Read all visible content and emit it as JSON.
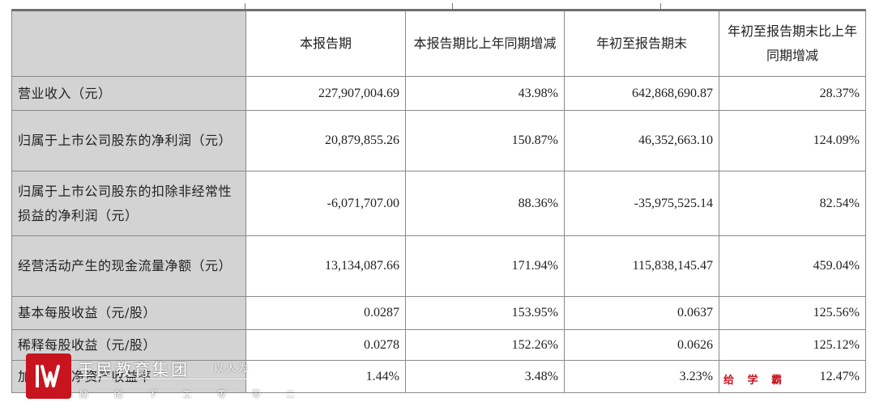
{
  "table": {
    "headers": [
      "",
      "本报告期",
      "本报告期比上年同期增减",
      "年初至报告期末",
      "年初至报告期末比上年同期增减"
    ],
    "rows": [
      {
        "label": "营业收入（元）",
        "current": "227,907,004.69",
        "current_change": "43.98%",
        "ytd": "642,868,690.87",
        "ytd_change": "28.37%"
      },
      {
        "label": "归属于上市公司股东的净利润（元）",
        "current": "20,879,855.26",
        "current_change": "150.87%",
        "ytd": "46,352,663.10",
        "ytd_change": "124.09%"
      },
      {
        "label": "归属于上市公司股东的扣除非经常性损益的净利润（元）",
        "current": "-6,071,707.00",
        "current_change": "88.36%",
        "ytd": "-35,975,525.14",
        "ytd_change": "82.54%"
      },
      {
        "label": "经营活动产生的现金流量净额（元）",
        "current": "13,134,087.66",
        "current_change": "171.94%",
        "ytd": "115,838,145.47",
        "ytd_change": "459.04%"
      },
      {
        "label": "基本每股收益（元/股）",
        "current": "0.0287",
        "current_change": "153.95%",
        "ytd": "0.0637",
        "ytd_change": "125.56%"
      },
      {
        "label": "稀释每股收益（元/股）",
        "current": "0.0278",
        "current_change": "152.26%",
        "ytd": "0.0626",
        "ytd_change": "125.12%"
      },
      {
        "label": "加权平均净资产收益率",
        "current": "1.44%",
        "current_change": "3.48%",
        "ytd": "3.23%",
        "ytd_change": "12.47%"
      }
    ]
  },
  "watermark": {
    "brand": "王民教育集团",
    "slogan": "以人为",
    "sub": "励 创 下 工 零 零 二",
    "right_text": "给 学 霸",
    "logo_color": "#c8141e"
  }
}
